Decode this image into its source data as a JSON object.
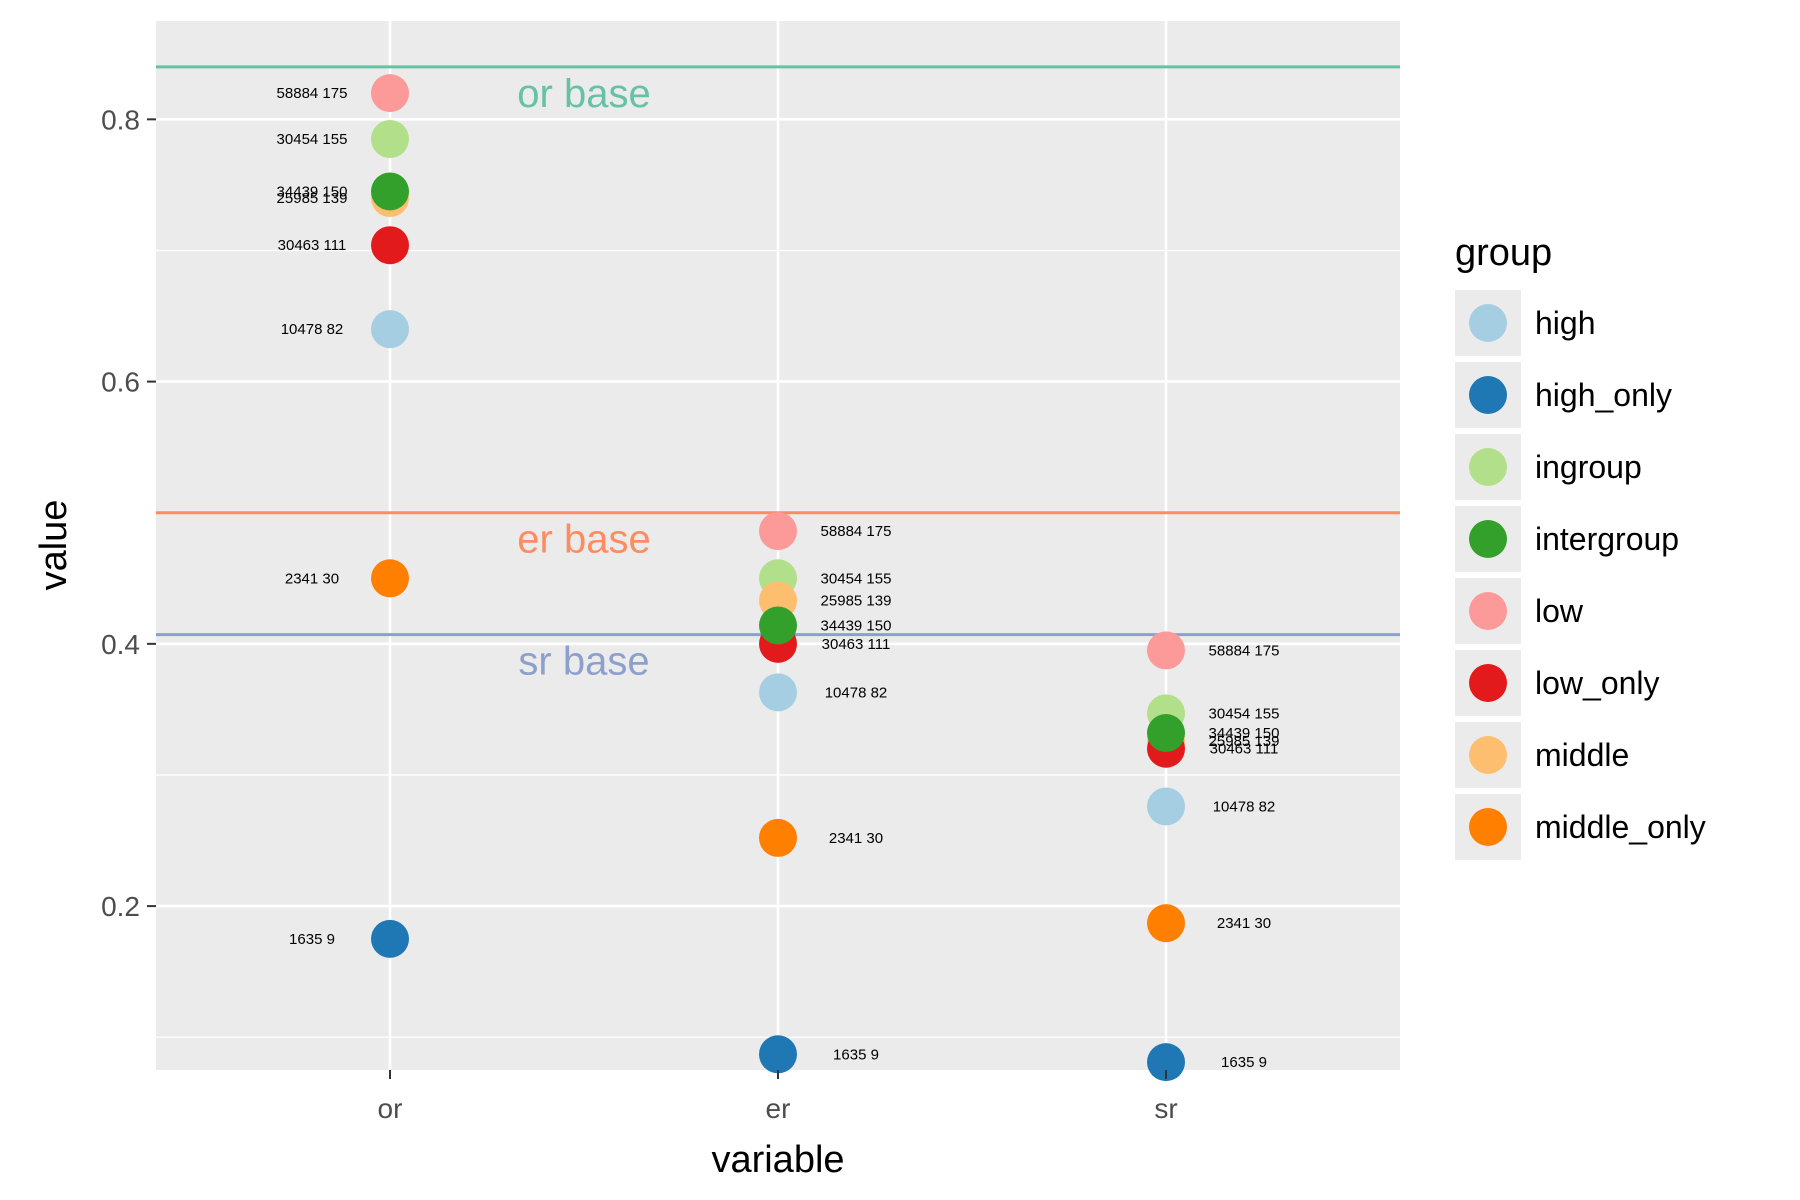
{
  "chart_data": {
    "type": "scatter",
    "title": "",
    "xlabel": "variable",
    "ylabel": "value",
    "categories": [
      "or",
      "er",
      "sr"
    ],
    "ylim": [
      0.075,
      0.875
    ],
    "yticks": [
      "0.2",
      "0.4",
      "0.6",
      "0.8"
    ],
    "ytick_values": [
      0.2,
      0.4,
      0.6,
      0.8
    ],
    "grid": true,
    "legend": {
      "title": "group",
      "placement": "right",
      "entries": [
        {
          "name": "high",
          "color": "#a6cee3"
        },
        {
          "name": "high_only",
          "color": "#1f78b4"
        },
        {
          "name": "ingroup",
          "color": "#b2df8a"
        },
        {
          "name": "intergroup",
          "color": "#33a02c"
        },
        {
          "name": "low",
          "color": "#fb9a99"
        },
        {
          "name": "low_only",
          "color": "#e31a1c"
        },
        {
          "name": "middle",
          "color": "#fdbf6f"
        },
        {
          "name": "middle_only",
          "color": "#ff7f00"
        }
      ]
    },
    "baselines": [
      {
        "label": "or base",
        "value": 0.84,
        "color": "#66c2a5"
      },
      {
        "label": "er base",
        "value": 0.5,
        "color": "#fc8d62"
      },
      {
        "label": "sr base",
        "value": 0.407,
        "color": "#8da0cb"
      }
    ],
    "series": [
      {
        "name": "high",
        "values": [
          0.64,
          0.363,
          0.276
        ],
        "labels": [
          "10478 82",
          "10478 82",
          "10478 82"
        ]
      },
      {
        "name": "high_only",
        "values": [
          0.175,
          0.087,
          0.081
        ],
        "labels": [
          "1635 9",
          "1635 9",
          "1635 9"
        ]
      },
      {
        "name": "ingroup",
        "values": [
          0.785,
          0.45,
          0.347
        ],
        "labels": [
          "30454 155",
          "30454 155",
          "30454 155"
        ]
      },
      {
        "name": "intergroup",
        "values": [
          0.745,
          0.414,
          0.332
        ],
        "labels": [
          "34439 150",
          "34439 150",
          "34439 150"
        ]
      },
      {
        "name": "low",
        "values": [
          0.82,
          0.486,
          0.395
        ],
        "labels": [
          "58884 175",
          "58884 175",
          "58884 175"
        ]
      },
      {
        "name": "low_only",
        "values": [
          0.704,
          0.4,
          0.32
        ],
        "labels": [
          "30463 111",
          "30463 111",
          "30463 111"
        ]
      },
      {
        "name": "middle",
        "values": [
          0.74,
          0.433,
          0.326
        ],
        "labels": [
          "25985 139",
          "25985 139",
          "25985 139"
        ]
      },
      {
        "name": "middle_only",
        "values": [
          0.45,
          0.252,
          0.187
        ],
        "labels": [
          "2341 30",
          "2341 30",
          "2341 30"
        ]
      }
    ]
  }
}
